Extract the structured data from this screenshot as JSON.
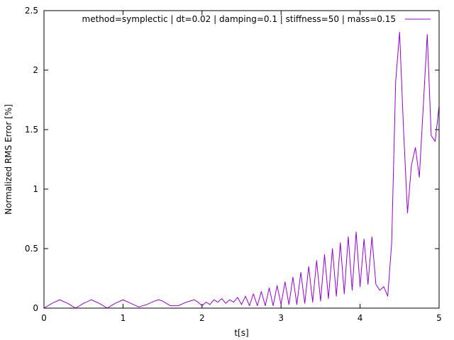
{
  "chart_data": {
    "type": "line",
    "xlabel": "t[s]",
    "ylabel": "Normalized RMS Error [%]",
    "xlim": [
      0,
      5
    ],
    "ylim": [
      0,
      2.5
    ],
    "xticks": [
      0,
      1,
      2,
      3,
      4,
      5
    ],
    "xtick_labels": [
      "0",
      "1",
      "2",
      "3",
      "4",
      "5"
    ],
    "yticks": [
      0,
      0.5,
      1,
      1.5,
      2,
      2.5
    ],
    "ytick_labels": [
      "0",
      "0.5",
      "1",
      "1.5",
      "2",
      "2.5"
    ],
    "grid": false,
    "legend_position": "top-right",
    "series": [
      {
        "name": "method=symplectic | dt=0.02 | damping=0.1 | stiffness=50 | mass=0.15",
        "color": "#9400d3",
        "x": [
          0,
          0.1,
          0.2,
          0.3,
          0.4,
          0.5,
          0.6,
          0.7,
          0.8,
          0.9,
          1.0,
          1.1,
          1.2,
          1.3,
          1.4,
          1.45,
          1.5,
          1.6,
          1.7,
          1.8,
          1.9,
          1.95,
          2.0,
          2.05,
          2.1,
          2.15,
          2.2,
          2.25,
          2.3,
          2.35,
          2.4,
          2.45,
          2.5,
          2.55,
          2.6,
          2.65,
          2.7,
          2.75,
          2.8,
          2.85,
          2.9,
          2.95,
          3.0,
          3.05,
          3.1,
          3.15,
          3.2,
          3.25,
          3.3,
          3.35,
          3.4,
          3.45,
          3.5,
          3.55,
          3.6,
          3.65,
          3.7,
          3.75,
          3.8,
          3.85,
          3.9,
          3.95,
          4.0,
          4.05,
          4.1,
          4.15,
          4.2,
          4.25,
          4.3,
          4.35,
          4.4,
          4.45,
          4.5,
          4.55,
          4.6,
          4.65,
          4.7,
          4.75,
          4.8,
          4.85,
          4.9,
          4.95,
          5.0
        ],
        "y": [
          0.0,
          0.04,
          0.07,
          0.04,
          0.0,
          0.04,
          0.07,
          0.04,
          0.0,
          0.04,
          0.07,
          0.04,
          0.01,
          0.03,
          0.06,
          0.07,
          0.06,
          0.02,
          0.02,
          0.05,
          0.07,
          0.05,
          0.02,
          0.05,
          0.03,
          0.07,
          0.05,
          0.08,
          0.04,
          0.07,
          0.05,
          0.09,
          0.03,
          0.1,
          0.02,
          0.12,
          0.02,
          0.14,
          0.02,
          0.17,
          0.02,
          0.19,
          0.03,
          0.22,
          0.03,
          0.26,
          0.03,
          0.3,
          0.04,
          0.35,
          0.05,
          0.4,
          0.06,
          0.45,
          0.08,
          0.5,
          0.1,
          0.55,
          0.12,
          0.6,
          0.15,
          0.64,
          0.18,
          0.58,
          0.2,
          0.6,
          0.2,
          0.15,
          0.18,
          0.1,
          0.55,
          1.9,
          2.32,
          1.5,
          0.8,
          1.2,
          1.35,
          1.1,
          1.7,
          2.3,
          1.45,
          1.4,
          1.7
        ]
      }
    ]
  }
}
